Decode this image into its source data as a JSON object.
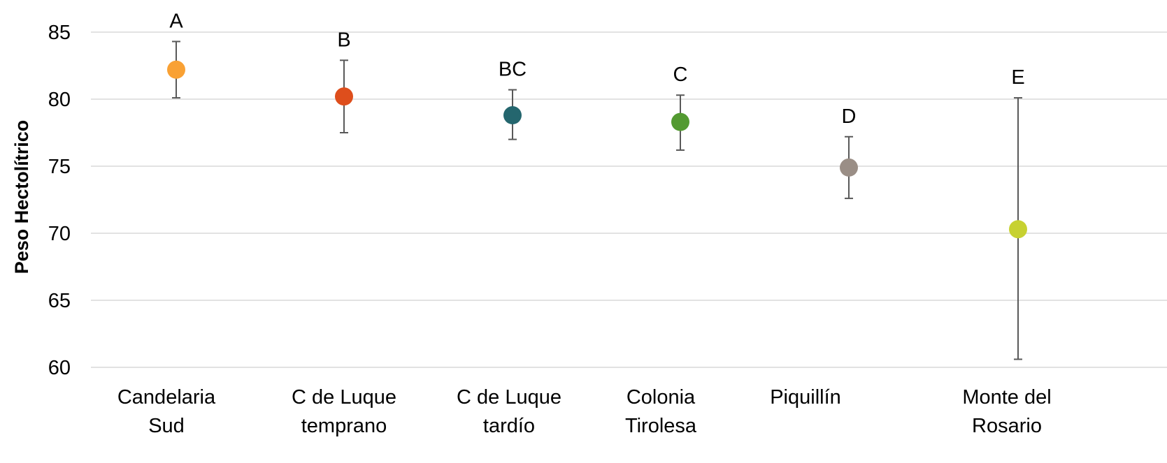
{
  "chart_data": {
    "type": "scatter",
    "title": "",
    "xlabel": "",
    "ylabel": "Peso Hectolítrico",
    "ylim": [
      60,
      85
    ],
    "yticks": [
      60,
      65,
      70,
      75,
      80,
      85
    ],
    "grid": true,
    "legend": "none",
    "categories": [
      [
        "Candelaria",
        "Sud"
      ],
      [
        "C de Luque",
        "temprano"
      ],
      [
        "C de Luque",
        "tardío"
      ],
      [
        "Colonia",
        "Tirolesa"
      ],
      [
        "Piquillín"
      ],
      [
        "Monte del",
        "Rosario"
      ]
    ],
    "values": [
      82.2,
      80.2,
      78.8,
      78.3,
      74.9,
      70.3
    ],
    "error_low": [
      80.1,
      77.5,
      77.0,
      76.2,
      72.6,
      60.6
    ],
    "error_high": [
      84.3,
      82.9,
      80.7,
      80.3,
      77.2,
      80.1
    ],
    "group_labels": [
      "A",
      "B",
      "BC",
      "C",
      "D",
      "E"
    ],
    "colors": [
      "#F9A134",
      "#DE4E1C",
      "#24666E",
      "#539A31",
      "#9A8E86",
      "#C7D131"
    ]
  }
}
